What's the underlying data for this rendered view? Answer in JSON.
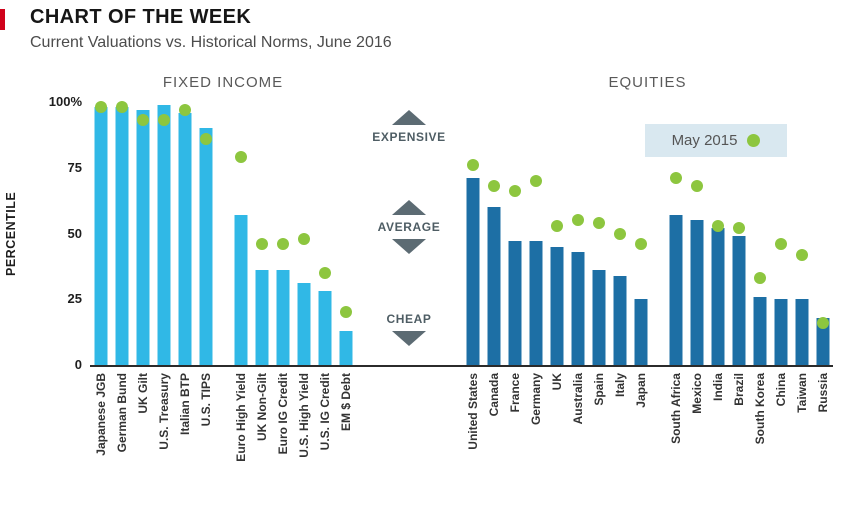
{
  "chart_data": {
    "type": "bar",
    "title": "CHART OF THE WEEK",
    "subtitle": "Current Valuations vs. Historical Norms, June 2016",
    "ylabel": "PERCENTILE",
    "ylim": [
      0,
      100
    ],
    "ytick_values": [
      100,
      75,
      50,
      25,
      0
    ],
    "ytick_labels": [
      "100%",
      "75",
      "50",
      "25",
      "0"
    ],
    "grid": false,
    "legend": {
      "label": "May 2015",
      "position": "top-right",
      "dot_color": "#8dc63f"
    },
    "annotations": [
      "EXPENSIVE",
      "AVERAGE",
      "CHEAP"
    ],
    "sections": [
      {
        "label": "FIXED INCOME",
        "bar_color": "#30b8e6",
        "groups": [
          {
            "categories": [
              "Japanese JGB",
              "German Bund",
              "UK Gilt",
              "U.S. Treasury",
              "Italian BTP",
              "U.S. TIPS"
            ],
            "bars": [
              98,
              98,
              97,
              99,
              96,
              90
            ],
            "dots": [
              98,
              98,
              93,
              93,
              97,
              86
            ]
          },
          {
            "categories": [
              "Euro High Yield",
              "UK Non-Gilt",
              "Euro IG Credit",
              "U.S. High Yield",
              "U.S. IG Credit",
              "EM $ Debt"
            ],
            "bars": [
              57,
              36,
              36,
              31,
              28,
              13
            ],
            "dots": [
              79,
              46,
              46,
              48,
              35,
              20
            ]
          }
        ]
      },
      {
        "label": "EQUITIES",
        "bar_color": "#1d6fa5",
        "groups": [
          {
            "categories": [
              "United States",
              "Canada",
              "France",
              "Germany",
              "UK",
              "Australia",
              "Spain",
              "Italy",
              "Japan"
            ],
            "bars": [
              71,
              60,
              47,
              47,
              45,
              43,
              36,
              34,
              25
            ],
            "dots": [
              76,
              68,
              66,
              70,
              53,
              55,
              54,
              50,
              46
            ]
          },
          {
            "categories": [
              "South Africa",
              "Mexico",
              "India",
              "Brazil",
              "South Korea",
              "China",
              "Taiwan",
              "Russia"
            ],
            "bars": [
              57,
              55,
              52,
              49,
              26,
              25,
              25,
              18
            ],
            "dots": [
              71,
              68,
              53,
              52,
              33,
              46,
              42,
              16
            ]
          }
        ]
      }
    ],
    "colors": {
      "baseline": "#2b2b2b",
      "arrow": "#5c6b73",
      "legend_bg": "#d9e8f0",
      "accent_red": "#d0021b"
    }
  }
}
